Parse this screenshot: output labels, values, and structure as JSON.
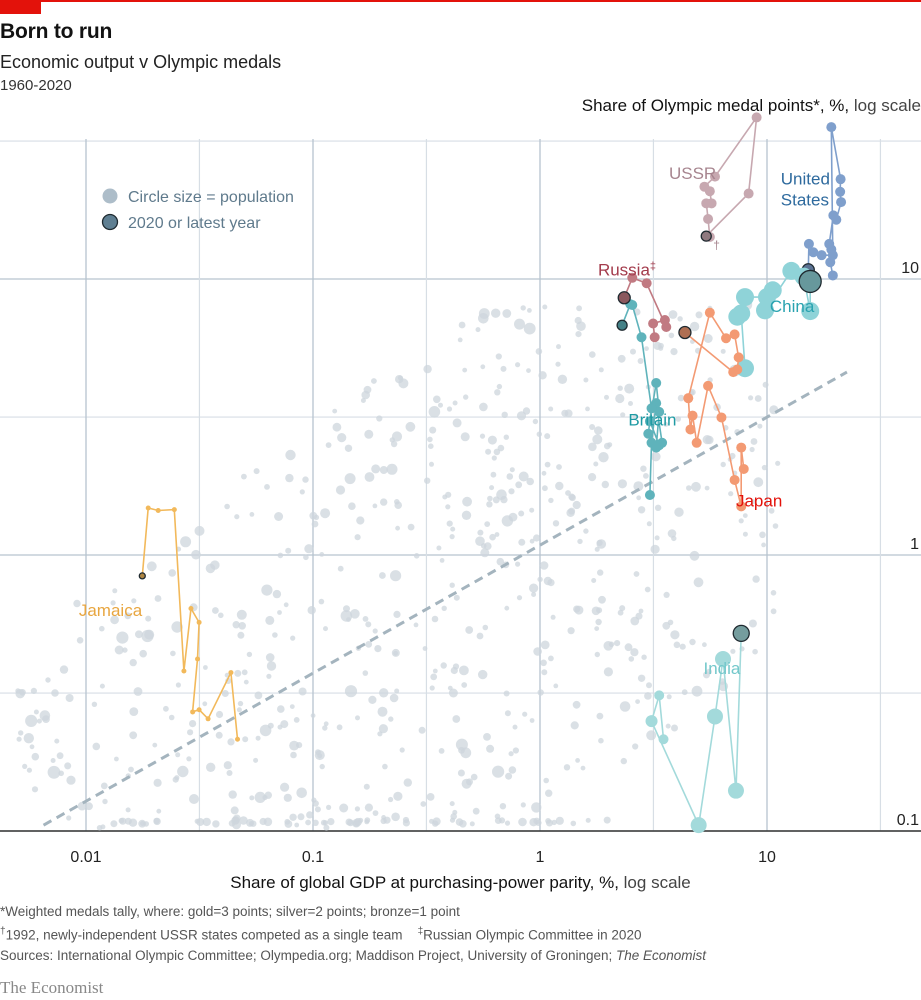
{
  "header": {
    "title": "Born to run",
    "subtitle": "Economic output v Olympic medals",
    "period": "1960-2020"
  },
  "footnotes": {
    "note1": "*Weighted medals tally, where: gold=3 points; silver=2 points; bronze=1 point",
    "note2_mark": "†",
    "note2": "1992, newly-independent USSR states competed as a single team",
    "note3_mark": "‡",
    "note3": "Russian Olympic Committee in 2020",
    "sources_prefix": "Sources: International Olympic Committee; Olympedia.org; Maddison Project, University of Groningen; ",
    "sources_italic": "The Economist"
  },
  "brand": "The Economist",
  "colors": {
    "accent_red": "#e3120b",
    "grid": "#d7dee5",
    "grid_major": "#b7c4cf",
    "background_dots": "#cdd5dc",
    "trendline": "#a4b4be",
    "legend_text": "#5f7a8c"
  },
  "chart_data": {
    "type": "scatter",
    "title": "Born to run",
    "subtitle": "Economic output v Olympic medals, 1960-2020",
    "xlabel": "Share of global GDP at purchasing-power parity, %,",
    "xlabel_light": "log scale",
    "ylabel": "Share of Olympic medal points*, %,",
    "ylabel_light": "log scale",
    "x_scale": "log",
    "y_scale": "log",
    "xlim": [
      0.0042,
      47
    ],
    "ylim": [
      0.1,
      37
    ],
    "x_ticks": [
      {
        "v": 0.01,
        "label": "0.01"
      },
      {
        "v": 0.1,
        "label": "0.1"
      },
      {
        "v": 1,
        "label": "1"
      },
      {
        "v": 10,
        "label": "10"
      }
    ],
    "x_minor_grid": [
      0.0316,
      0.316,
      3.16,
      31.6
    ],
    "y_ticks": [
      {
        "v": 0.1,
        "label": "0.1"
      },
      {
        "v": 1,
        "label": "1"
      },
      {
        "v": 10,
        "label": "10"
      }
    ],
    "y_minor_grid": [
      0.316,
      3.16,
      31.6
    ],
    "grid": true,
    "legend": {
      "placement": "top-left",
      "items": [
        {
          "label": "Circle size = population",
          "style": "plain",
          "color": "#adbdc9"
        },
        {
          "label": "2020 or latest year",
          "style": "outlined",
          "color": "#5f7f92"
        }
      ]
    },
    "trendline": {
      "style": "dashed",
      "from": [
        0.0065,
        0.105
      ],
      "to": [
        22.5,
        4.6
      ]
    },
    "series": [
      {
        "name": "USSR",
        "label": "USSR",
        "label_note": "†",
        "color": "#c7a8b0",
        "label_color": "#a7858f",
        "label_at": [
          3.7,
          23
        ],
        "points": [
          [
            5.6,
            14.2,
            5
          ],
          [
            5.5,
            16.5,
            5
          ],
          [
            5.4,
            18.8,
            5
          ],
          [
            5.7,
            18.8,
            5
          ],
          [
            5.6,
            20.8,
            5
          ],
          [
            5.3,
            21.6,
            5
          ],
          [
            5.9,
            23.5,
            5
          ],
          [
            9.0,
            38.5,
            5
          ],
          [
            8.3,
            20.4,
            5
          ],
          [
            5.4,
            14.3,
            5,
            "latest"
          ]
        ]
      },
      {
        "name": "United States",
        "label": "United States",
        "color": "#7f9fcc",
        "label_color": "#2e6a9e",
        "label_at": [
          11.5,
          22
        ],
        "points": [
          [
            19.5,
            10.3,
            5
          ],
          [
            19.0,
            11.5,
            5
          ],
          [
            19.2,
            12.8,
            5
          ],
          [
            18.8,
            13.4,
            5
          ],
          [
            19.6,
            17.0,
            5
          ],
          [
            20.2,
            16.4,
            5
          ],
          [
            21.2,
            19.0,
            5
          ],
          [
            21.0,
            20.7,
            5
          ],
          [
            21.1,
            23.0,
            5
          ],
          [
            19.2,
            35.5,
            5
          ],
          [
            19.5,
            12.2,
            5
          ],
          [
            17.4,
            12.2,
            5
          ],
          [
            16.0,
            12.5,
            5
          ],
          [
            15.3,
            13.4,
            5
          ],
          [
            15.2,
            10.8,
            6,
            "latest"
          ]
        ]
      },
      {
        "name": "China",
        "label": "China",
        "color": "#8fd3d8",
        "label_color": "#2aa3b0",
        "label_at": [
          10.3,
          7.6
        ],
        "points": [
          [
            8.0,
            4.75,
            9
          ],
          [
            7.7,
            7.5,
            9
          ],
          [
            7.4,
            7.3,
            9
          ],
          [
            8.0,
            8.6,
            9
          ],
          [
            10.0,
            8.6,
            9
          ],
          [
            10.6,
            9.1,
            9
          ],
          [
            9.8,
            7.7,
            9
          ],
          [
            12.8,
            10.7,
            9
          ],
          [
            14.5,
            10.2,
            9
          ],
          [
            15.5,
            7.65,
            9
          ],
          [
            15.5,
            9.8,
            11,
            "latest"
          ]
        ]
      },
      {
        "name": "Japan",
        "label": "Japan",
        "color": "#f39a73",
        "label_color": "#e3120b",
        "label_at": [
          7.3,
          1.5
        ],
        "points": [
          [
            7.9,
            2.05,
            5
          ],
          [
            7.7,
            2.45,
            5
          ],
          [
            7.7,
            1.5,
            5
          ],
          [
            7.2,
            1.87,
            5
          ],
          [
            6.3,
            3.15,
            5
          ],
          [
            5.5,
            4.1,
            5
          ],
          [
            4.9,
            2.55,
            5
          ],
          [
            4.7,
            3.2,
            5
          ],
          [
            4.6,
            2.85,
            5
          ],
          [
            4.5,
            3.7,
            5
          ],
          [
            5.6,
            7.55,
            5
          ],
          [
            6.6,
            6.1,
            5
          ],
          [
            7.2,
            6.3,
            5
          ],
          [
            7.5,
            5.2,
            5
          ],
          [
            7.4,
            4.7,
            5
          ],
          [
            7.1,
            4.6,
            5
          ],
          [
            4.35,
            6.4,
            6,
            "latest"
          ]
        ]
      },
      {
        "name": "Britain",
        "label": "Britain",
        "color": "#5fb3bb",
        "label_color": "#1d9aa3",
        "label_at": [
          2.45,
          2.95
        ],
        "points": [
          [
            3.05,
            1.65,
            5
          ],
          [
            3.1,
            2.55,
            5
          ],
          [
            3.25,
            3.55,
            5
          ],
          [
            3.45,
            2.55,
            5
          ],
          [
            3.35,
            2.5,
            5
          ],
          [
            3.05,
            3.05,
            5
          ],
          [
            3.25,
            4.2,
            5
          ],
          [
            3.35,
            3.3,
            5
          ],
          [
            3.25,
            2.45,
            5
          ],
          [
            3.0,
            2.75,
            5
          ],
          [
            3.1,
            3.4,
            5
          ],
          [
            2.8,
            6.15,
            5
          ],
          [
            2.55,
            8.05,
            5
          ],
          [
            2.5,
            8.1,
            5
          ],
          [
            2.3,
            6.8,
            5,
            "latest"
          ]
        ]
      },
      {
        "name": "Russia",
        "label": "Russia",
        "label_note": "‡",
        "color": "#c17a82",
        "label_color": "#a33b4c",
        "label_at": [
          1.8,
          10.3
        ],
        "points": [
          [
            3.2,
            6.15,
            5
          ],
          [
            3.15,
            6.9,
            5
          ],
          [
            3.55,
            7.1,
            5
          ],
          [
            3.6,
            6.7,
            5
          ],
          [
            2.95,
            9.65,
            5
          ],
          [
            2.55,
            10.1,
            5
          ],
          [
            2.35,
            8.55,
            6,
            "latest"
          ]
        ]
      },
      {
        "name": "Jamaica",
        "label": "Jamaica",
        "color": "#f2b95b",
        "label_color": "#e8a640",
        "label_at": [
          0.0093,
          0.6
        ],
        "points": [
          [
            0.0465,
            0.215,
            2.5
          ],
          [
            0.0435,
            0.375,
            2.5
          ],
          [
            0.0345,
            0.255,
            2.5
          ],
          [
            0.0315,
            0.275,
            2.5
          ],
          [
            0.0295,
            0.27,
            2.5
          ],
          [
            0.031,
            0.42,
            2.5
          ],
          [
            0.0315,
            0.57,
            2.5
          ],
          [
            0.029,
            0.64,
            2.5
          ],
          [
            0.027,
            0.38,
            2.5
          ],
          [
            0.0245,
            1.46,
            2.5
          ],
          [
            0.0208,
            1.45,
            2.5
          ],
          [
            0.0188,
            1.48,
            2.5
          ],
          [
            0.0177,
            0.84,
            3,
            "latest"
          ]
        ]
      },
      {
        "name": "India",
        "label": "India",
        "color": "#a3dadb",
        "label_color": "#74c8cb",
        "label_at": [
          5.25,
          0.37
        ],
        "points": [
          [
            3.5,
            0.215,
            5
          ],
          [
            3.35,
            0.31,
            5
          ],
          [
            3.1,
            0.25,
            6
          ],
          [
            5.0,
            0.105,
            8
          ],
          [
            5.9,
            0.26,
            8
          ],
          [
            6.4,
            0.42,
            8
          ],
          [
            7.3,
            0.14,
            8
          ],
          [
            7.7,
            0.52,
            8,
            "latest"
          ]
        ]
      }
    ],
    "background_points_note": "Other countries, each Olympics 1960-2020 (grey circles)"
  }
}
